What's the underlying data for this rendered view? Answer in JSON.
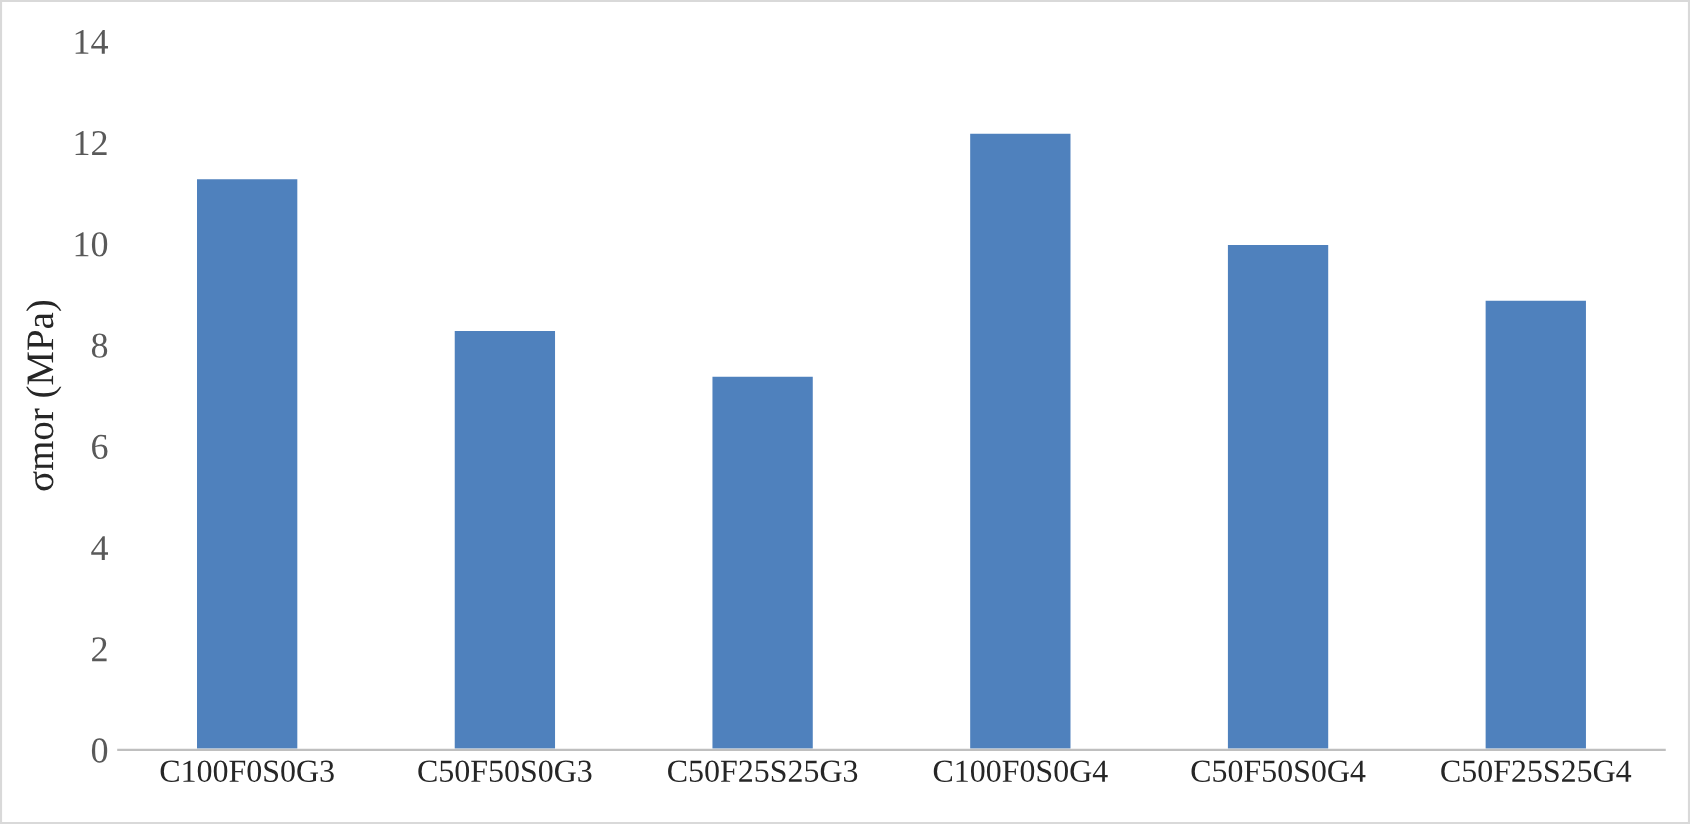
{
  "chart_data": {
    "type": "bar",
    "ylabel": "σmor (MPa)",
    "categories": [
      "C100F0S0G3",
      "C50F50S0G3",
      "C50F25S25G3",
      "C100F0S0G4",
      "C50F50S0G4",
      "C50F25S25G4"
    ],
    "values": [
      11.3,
      8.3,
      7.4,
      12.2,
      10.0,
      8.9
    ],
    "color": "#4f81bd",
    "ylim": [
      0,
      14
    ],
    "yticks": [
      0,
      2,
      4,
      6,
      8,
      10,
      12,
      14
    ],
    "grid": false
  }
}
